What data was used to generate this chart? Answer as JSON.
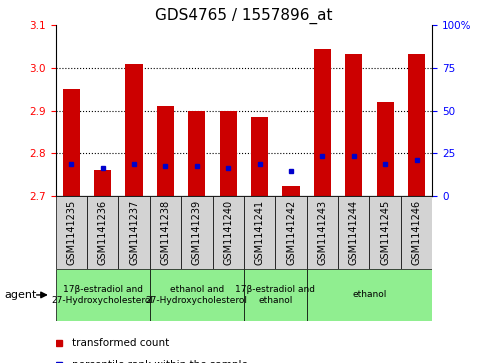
{
  "title": "GDS4765 / 1557896_at",
  "samples": [
    "GSM1141235",
    "GSM1141236",
    "GSM1141237",
    "GSM1141238",
    "GSM1141239",
    "GSM1141240",
    "GSM1141241",
    "GSM1141242",
    "GSM1141243",
    "GSM1141244",
    "GSM1141245",
    "GSM1141246"
  ],
  "red_values": [
    2.95,
    2.76,
    3.01,
    2.91,
    2.9,
    2.9,
    2.885,
    2.724,
    3.045,
    3.033,
    2.92,
    3.033
  ],
  "blue_values": [
    2.775,
    2.765,
    2.775,
    2.77,
    2.77,
    2.765,
    2.775,
    2.758,
    2.795,
    2.795,
    2.775,
    2.785
  ],
  "ylim": [
    2.7,
    3.1
  ],
  "yticks_left": [
    2.7,
    2.8,
    2.9,
    3.0,
    3.1
  ],
  "yticks_right_pos": [
    2.7,
    2.8,
    2.9,
    3.0,
    3.1
  ],
  "yticks_right_labels": [
    "0",
    "25",
    "50",
    "75",
    "100%"
  ],
  "bar_color": "#CC0000",
  "dot_color": "#0000CC",
  "sample_box_color": "#D3D3D3",
  "group_box_color": "#90EE90",
  "plot_bg": "#FFFFFF",
  "title_fontsize": 11,
  "axis_fontsize": 7.5,
  "sample_fontsize": 7,
  "group_fontsize": 6.5,
  "legend_fontsize": 7.5,
  "agent_fontsize": 8,
  "groups": [
    {
      "start": 0,
      "end": 3,
      "label": "17β-estradiol and\n27-Hydroxycholesterol"
    },
    {
      "start": 3,
      "end": 6,
      "label": "ethanol and\n27-Hydroxycholesterol"
    },
    {
      "start": 6,
      "end": 8,
      "label": "17β-estradiol and\nethanol"
    },
    {
      "start": 8,
      "end": 12,
      "label": "ethanol"
    }
  ]
}
